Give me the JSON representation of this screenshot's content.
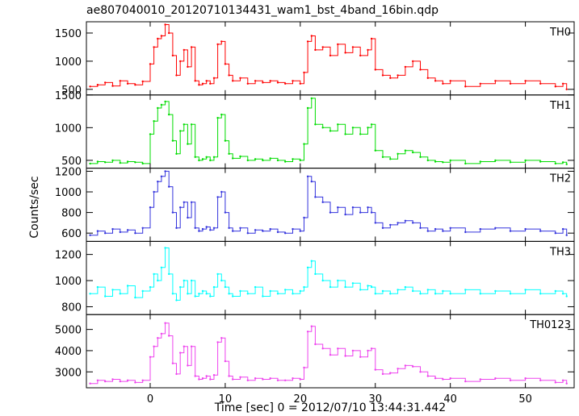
{
  "chart_data": {
    "type": "line",
    "title": "ae807040010_20120710134431_wam1_bst_4band_16bin.qdp",
    "xlabel": "Time [sec] 0 = 2012/07/10 13:44:31.442",
    "ylabel": "Counts/sec",
    "xlim": [
      -8.5,
      56.5
    ],
    "xticks": [
      0,
      10,
      20,
      30,
      40,
      50
    ],
    "grid": false,
    "legend": "none",
    "panels": [
      {
        "name": "TH0",
        "color": "#ff0000",
        "ylim": [
          400,
          1700
        ],
        "yticks": [
          500,
          1000,
          1500
        ],
        "x": [
          -8,
          -7,
          -6,
          -5,
          -4,
          -3,
          -2,
          -1,
          0,
          0.5,
          1,
          1.5,
          2,
          2.5,
          3,
          3.5,
          4,
          4.5,
          5,
          5.5,
          6,
          6.5,
          7,
          7.5,
          8,
          8.5,
          9,
          9.5,
          10,
          10.5,
          11,
          12,
          13,
          14,
          15,
          16,
          17,
          18,
          19,
          20,
          20.5,
          21,
          21.5,
          22,
          23,
          24,
          25,
          26,
          27,
          28,
          29,
          29.5,
          30,
          31,
          32,
          33,
          34,
          35,
          36,
          37,
          38,
          39,
          40,
          42,
          44,
          46,
          48,
          50,
          52,
          54,
          55,
          55.5
        ],
        "values": [
          550,
          580,
          620,
          560,
          650,
          600,
          580,
          640,
          950,
          1250,
          1400,
          1450,
          1650,
          1500,
          1100,
          750,
          1000,
          1200,
          900,
          1250,
          650,
          580,
          600,
          650,
          600,
          700,
          1300,
          1350,
          950,
          750,
          650,
          700,
          600,
          650,
          620,
          650,
          620,
          600,
          650,
          600,
          800,
          1350,
          1450,
          1200,
          1250,
          1100,
          1300,
          1150,
          1250,
          1100,
          1200,
          1400,
          850,
          750,
          700,
          750,
          900,
          1000,
          850,
          700,
          650,
          600,
          650,
          550,
          600,
          650,
          600,
          650,
          600,
          550,
          600,
          500
        ]
      },
      {
        "name": "TH1",
        "color": "#00dd00",
        "ylim": [
          380,
          1500
        ],
        "yticks": [
          500,
          1000,
          1500
        ],
        "x": [
          -8,
          -7,
          -6,
          -5,
          -4,
          -3,
          -2,
          -1,
          0,
          0.5,
          1,
          1.5,
          2,
          2.5,
          3,
          3.5,
          4,
          4.5,
          5,
          5.5,
          6,
          6.5,
          7,
          7.5,
          8,
          8.5,
          9,
          9.5,
          10,
          10.5,
          11,
          12,
          13,
          14,
          15,
          16,
          17,
          18,
          19,
          20,
          20.5,
          21,
          21.5,
          22,
          23,
          24,
          25,
          26,
          27,
          28,
          29,
          29.5,
          30,
          31,
          32,
          33,
          34,
          35,
          36,
          37,
          38,
          39,
          40,
          42,
          44,
          46,
          48,
          50,
          52,
          54,
          55,
          55.5
        ],
        "values": [
          450,
          480,
          470,
          500,
          460,
          480,
          470,
          450,
          900,
          1100,
          1300,
          1350,
          1400,
          1200,
          800,
          600,
          950,
          1050,
          750,
          1050,
          550,
          500,
          520,
          550,
          500,
          550,
          1150,
          1200,
          800,
          600,
          530,
          560,
          500,
          520,
          500,
          530,
          500,
          480,
          520,
          500,
          750,
          1300,
          1450,
          1050,
          1000,
          950,
          1050,
          900,
          1000,
          900,
          1000,
          1050,
          650,
          550,
          520,
          600,
          650,
          620,
          550,
          500,
          480,
          470,
          500,
          450,
          480,
          500,
          470,
          500,
          480,
          450,
          470,
          440
        ]
      },
      {
        "name": "TH2",
        "color": "#3333dd",
        "ylim": [
          520,
          1230
        ],
        "yticks": [
          600,
          800,
          1000,
          1200
        ],
        "x": [
          -8,
          -7,
          -6,
          -5,
          -4,
          -3,
          -2,
          -1,
          0,
          0.5,
          1,
          1.5,
          2,
          2.5,
          3,
          3.5,
          4,
          4.5,
          5,
          5.5,
          6,
          6.5,
          7,
          7.5,
          8,
          8.5,
          9,
          9.5,
          10,
          10.5,
          11,
          12,
          13,
          14,
          15,
          16,
          17,
          18,
          19,
          20,
          20.5,
          21,
          21.5,
          22,
          23,
          24,
          25,
          26,
          27,
          28,
          29,
          29.5,
          30,
          31,
          32,
          33,
          34,
          35,
          36,
          37,
          38,
          39,
          40,
          42,
          44,
          46,
          48,
          50,
          52,
          54,
          55,
          55.5
        ],
        "values": [
          580,
          620,
          600,
          640,
          610,
          630,
          600,
          650,
          850,
          1000,
          1100,
          1150,
          1200,
          1050,
          800,
          650,
          850,
          900,
          750,
          900,
          650,
          620,
          640,
          660,
          630,
          650,
          950,
          1000,
          800,
          650,
          620,
          650,
          600,
          630,
          620,
          640,
          610,
          600,
          640,
          620,
          750,
          1150,
          1100,
          950,
          900,
          800,
          850,
          780,
          850,
          800,
          850,
          800,
          700,
          650,
          680,
          700,
          720,
          700,
          650,
          620,
          640,
          620,
          650,
          610,
          640,
          650,
          620,
          640,
          620,
          600,
          640,
          580
        ]
      },
      {
        "name": "TH3",
        "color": "#00ffff",
        "ylim": [
          740,
          1300
        ],
        "yticks": [
          800,
          1000,
          1200
        ],
        "x": [
          -8,
          -7,
          -6,
          -5,
          -4,
          -3,
          -2,
          -1,
          0,
          0.5,
          1,
          1.5,
          2,
          2.5,
          3,
          3.5,
          4,
          4.5,
          5,
          5.5,
          6,
          6.5,
          7,
          7.5,
          8,
          8.5,
          9,
          9.5,
          10,
          10.5,
          11,
          12,
          13,
          14,
          15,
          16,
          17,
          18,
          19,
          20,
          20.5,
          21,
          21.5,
          22,
          23,
          24,
          25,
          26,
          27,
          28,
          29,
          29.5,
          30,
          31,
          32,
          33,
          34,
          35,
          36,
          37,
          38,
          39,
          40,
          42,
          44,
          46,
          48,
          50,
          52,
          54,
          55,
          55.5
        ],
        "values": [
          900,
          950,
          880,
          930,
          900,
          960,
          870,
          920,
          950,
          1050,
          1000,
          1100,
          1250,
          1050,
          900,
          850,
          950,
          1000,
          900,
          1000,
          880,
          900,
          920,
          900,
          880,
          950,
          1050,
          1000,
          950,
          900,
          880,
          920,
          900,
          950,
          880,
          920,
          900,
          930,
          900,
          920,
          950,
          1100,
          1150,
          1050,
          1000,
          950,
          1000,
          950,
          980,
          930,
          960,
          950,
          900,
          920,
          900,
          930,
          950,
          920,
          900,
          930,
          900,
          920,
          900,
          930,
          900,
          920,
          900,
          930,
          900,
          920,
          900,
          880
        ]
      },
      {
        "name": "TH0123",
        "color": "#ee44ee",
        "ylim": [
          2250,
          5700
        ],
        "yticks": [
          3000,
          4000,
          5000
        ],
        "x": [
          -8,
          -7,
          -6,
          -5,
          -4,
          -3,
          -2,
          -1,
          0,
          0.5,
          1,
          1.5,
          2,
          2.5,
          3,
          3.5,
          4,
          4.5,
          5,
          5.5,
          6,
          6.5,
          7,
          7.5,
          8,
          8.5,
          9,
          9.5,
          10,
          10.5,
          11,
          12,
          13,
          14,
          15,
          16,
          17,
          18,
          19,
          20,
          20.5,
          21,
          21.5,
          22,
          23,
          24,
          25,
          26,
          27,
          28,
          29,
          29.5,
          30,
          31,
          32,
          33,
          34,
          35,
          36,
          37,
          38,
          39,
          40,
          42,
          44,
          46,
          48,
          50,
          52,
          54,
          55,
          55.5
        ],
        "values": [
          2450,
          2600,
          2550,
          2650,
          2550,
          2600,
          2500,
          2600,
          3700,
          4200,
          4600,
          4800,
          5300,
          4700,
          3400,
          2900,
          3900,
          4200,
          3300,
          4200,
          2800,
          2650,
          2700,
          2800,
          2650,
          2850,
          4400,
          4600,
          3500,
          2800,
          2650,
          2750,
          2600,
          2700,
          2650,
          2700,
          2600,
          2600,
          2700,
          2650,
          3200,
          4900,
          5150,
          4300,
          4100,
          3800,
          4100,
          3750,
          4000,
          3700,
          4000,
          4100,
          3100,
          2900,
          2950,
          3150,
          3300,
          3250,
          3000,
          2800,
          2700,
          2650,
          2700,
          2550,
          2650,
          2700,
          2600,
          2700,
          2600,
          2500,
          2600,
          2450
        ]
      }
    ]
  }
}
